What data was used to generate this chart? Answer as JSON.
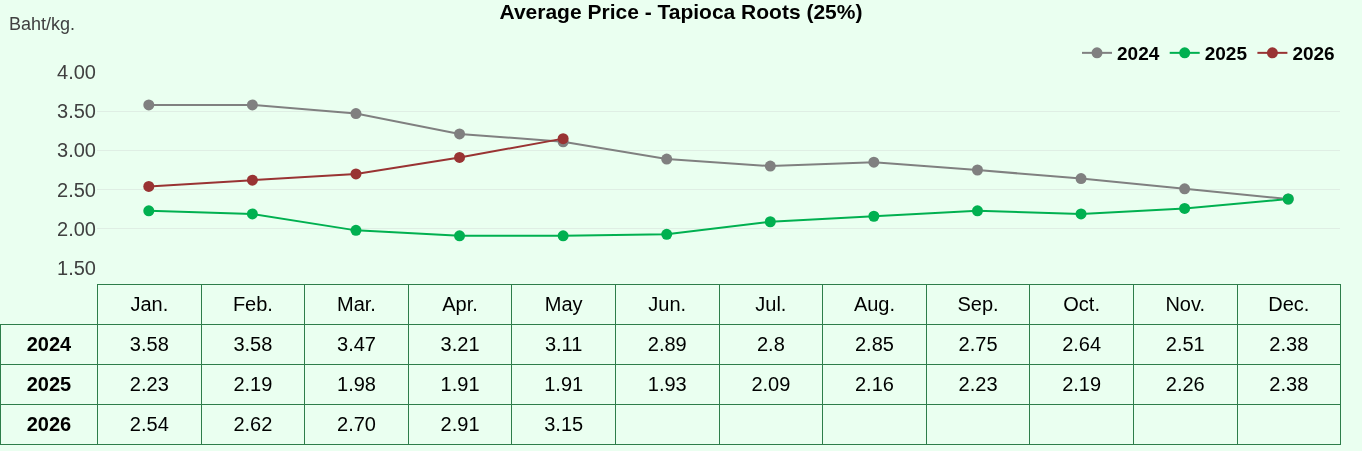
{
  "chart_data": {
    "type": "line",
    "title": "Average Price - Tapioca Roots (25%)",
    "ylabel": "Baht/kg.",
    "categories": [
      "Jan.",
      "Feb.",
      "Mar.",
      "Apr.",
      "May",
      "Jun.",
      "Jul.",
      "Aug.",
      "Sep.",
      "Oct.",
      "Nov.",
      "Dec."
    ],
    "series": [
      {
        "name": "2024",
        "color": "#808080",
        "values": [
          3.58,
          3.58,
          3.47,
          3.21,
          3.11,
          2.89,
          2.8,
          2.85,
          2.75,
          2.64,
          2.51,
          2.38
        ],
        "value_labels": [
          "3.58",
          "3.58",
          "3.47",
          "3.21",
          "3.11",
          "2.89",
          "2.8",
          "2.85",
          "2.75",
          "2.64",
          "2.51",
          "2.38"
        ]
      },
      {
        "name": "2025",
        "color": "#00b050",
        "values": [
          2.23,
          2.19,
          1.98,
          1.91,
          1.91,
          1.93,
          2.09,
          2.16,
          2.23,
          2.19,
          2.26,
          2.38
        ],
        "value_labels": [
          "2.23",
          "2.19",
          "1.98",
          "1.91",
          "1.91",
          "1.93",
          "2.09",
          "2.16",
          "2.23",
          "2.19",
          "2.26",
          "2.38"
        ]
      },
      {
        "name": "2026",
        "color": "#993333",
        "values": [
          2.54,
          2.62,
          2.7,
          2.91,
          3.15,
          null,
          null,
          null,
          null,
          null,
          null,
          null
        ],
        "value_labels": [
          "2.54",
          "2.62",
          "2.70",
          "2.91",
          "3.15",
          null,
          null,
          null,
          null,
          null,
          null,
          null
        ]
      }
    ],
    "ylim": [
      1.5,
      4.0
    ],
    "yticks": [
      {
        "value": 1.5,
        "label": "1.50"
      },
      {
        "value": 2,
        "label": "2.00"
      },
      {
        "value": 2.5,
        "label": "2.50"
      },
      {
        "value": 3,
        "label": "3.00"
      },
      {
        "value": 3.5,
        "label": "3.50"
      },
      {
        "value": 4,
        "label": "4.00"
      }
    ],
    "grid": "y",
    "legend": "top right",
    "marker": "circle",
    "line_style": "solid"
  }
}
